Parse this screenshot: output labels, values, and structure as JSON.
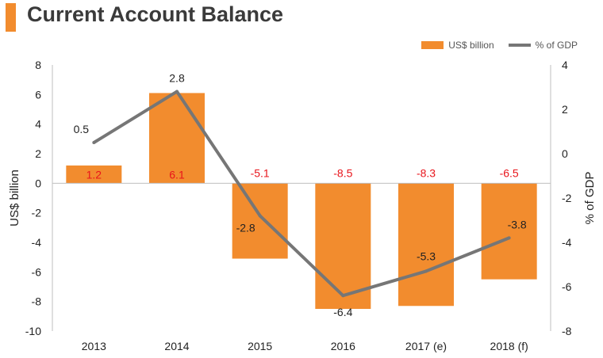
{
  "header": {
    "title": "Current Account Balance"
  },
  "colors": {
    "accent": "#f28c2e",
    "bar": "#f28c2e",
    "line": "#767676",
    "bar_label": "#e8151b",
    "line_label": "#222222"
  },
  "legend": {
    "position": "top-right"
  },
  "chart_data": {
    "type": "bar",
    "title": "Current Account Balance",
    "categories": [
      "2013",
      "2014",
      "2015",
      "2016",
      "2017 (e)",
      "2018 (f)"
    ],
    "series": [
      {
        "name": "US$ billion",
        "type": "bar",
        "axis": "left",
        "values": [
          1.2,
          6.1,
          -5.1,
          -8.5,
          -8.3,
          -6.5
        ]
      },
      {
        "name": "% of GDP",
        "type": "line",
        "axis": "right",
        "values": [
          0.5,
          2.8,
          -2.8,
          -6.4,
          -5.3,
          -3.8
        ]
      }
    ],
    "ylabel": "US$ billion",
    "y2label": "% of GDP",
    "ylim": [
      -10,
      8
    ],
    "y2lim": [
      -8,
      4
    ],
    "yticks": [
      "8",
      "6",
      "4",
      "2",
      "0",
      "-2",
      "-4",
      "-6",
      "-8",
      "-10"
    ],
    "y2ticks": [
      "4",
      "2",
      "0",
      "-2",
      "-4",
      "-6",
      "-8"
    ],
    "grid": false
  }
}
